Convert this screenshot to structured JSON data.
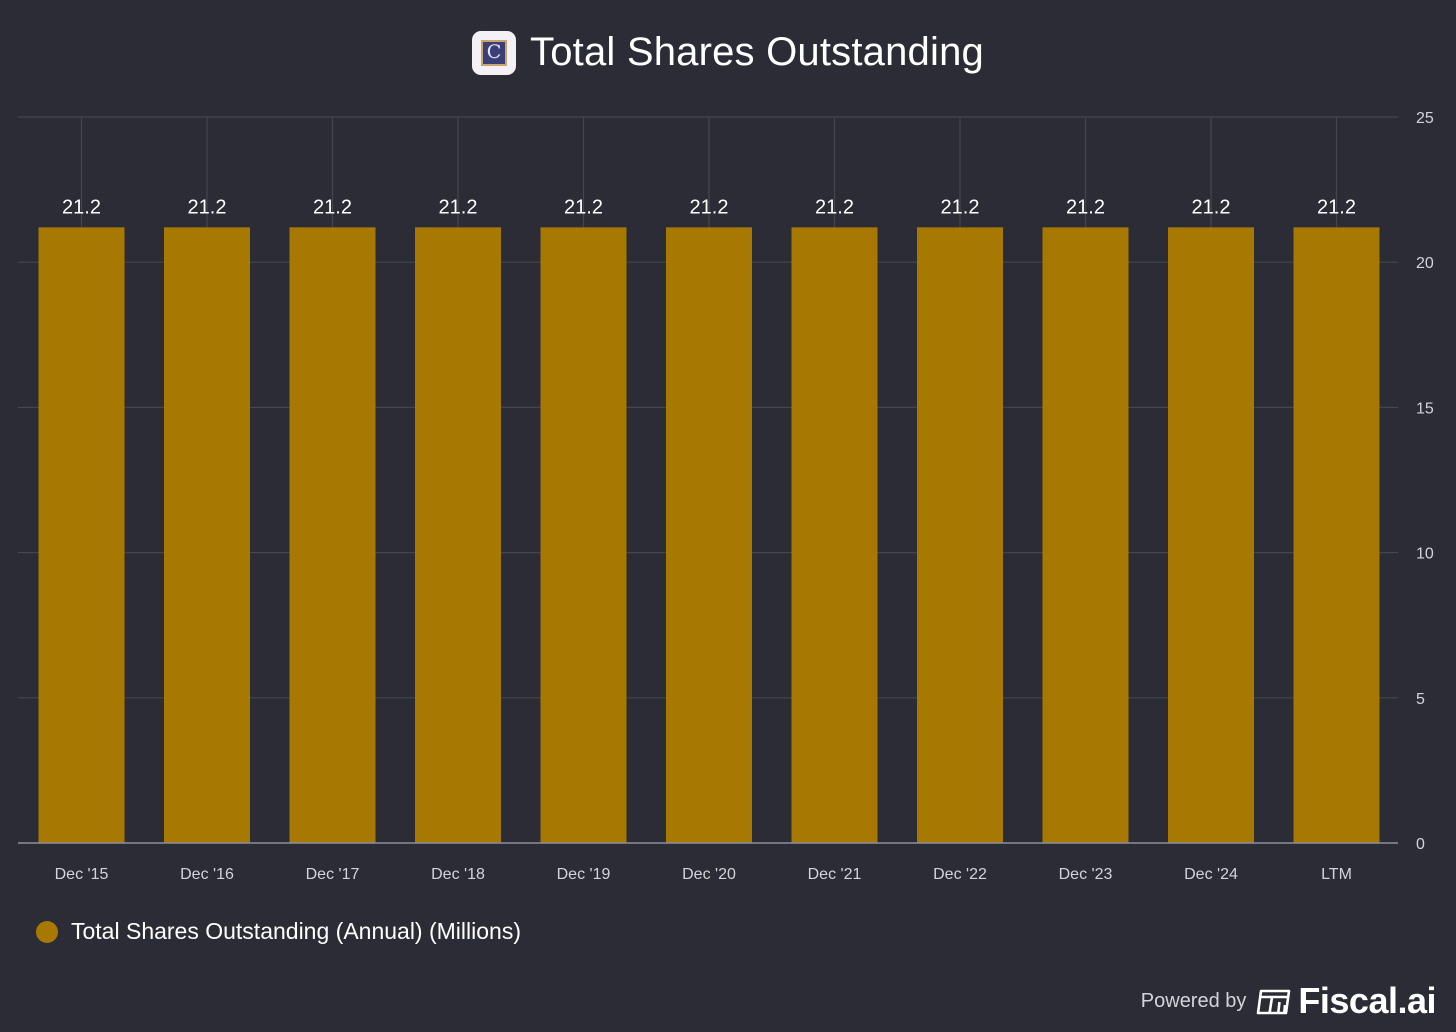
{
  "header": {
    "title": "Total Shares Outstanding",
    "logo_icon": "company-c-logo",
    "logo_letter": "C"
  },
  "chart_data": {
    "type": "bar",
    "title": "Total Shares Outstanding",
    "categories": [
      "Dec '15",
      "Dec '16",
      "Dec '17",
      "Dec '18",
      "Dec '19",
      "Dec '20",
      "Dec '21",
      "Dec '22",
      "Dec '23",
      "Dec '24",
      "LTM"
    ],
    "series": [
      {
        "name": "Total Shares Outstanding (Annual) (Millions)",
        "values": [
          21.2,
          21.2,
          21.2,
          21.2,
          21.2,
          21.2,
          21.2,
          21.2,
          21.2,
          21.2,
          21.2
        ],
        "color": "#a87902"
      }
    ],
    "data_labels": [
      "21.2",
      "21.2",
      "21.2",
      "21.2",
      "21.2",
      "21.2",
      "21.2",
      "21.2",
      "21.2",
      "21.2",
      "21.2"
    ],
    "ylim": [
      0,
      25
    ],
    "yticks": [
      0,
      5,
      10,
      15,
      20,
      25
    ],
    "y_axis_side": "right",
    "grid": true,
    "legend_position": "bottom-left"
  },
  "legend": {
    "label": "Total Shares Outstanding (Annual) (Millions)",
    "color": "#a87902"
  },
  "footer": {
    "powered_by": "Powered by",
    "brand": "Fiscal.ai",
    "brand_icon": "fiscal-ai-logo-icon"
  },
  "colors": {
    "background": "#2b2c35",
    "bar": "#a87902",
    "grid": "#44464f",
    "axis": "#8e9099",
    "tick_label": "#d4d4d8"
  }
}
